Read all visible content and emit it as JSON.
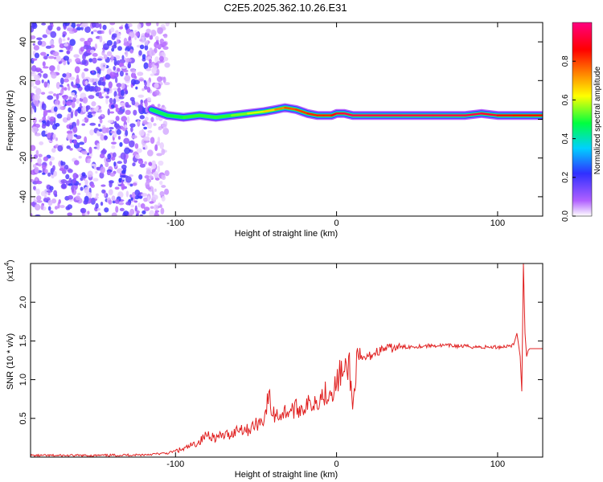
{
  "title": "C2E5.2025.362.10.26.E31",
  "chart_data": [
    {
      "type": "heatmap",
      "xlabel": "Height of straight line (km)",
      "ylabel": "Frequency (Hz)",
      "xlim": [
        -190,
        128
      ],
      "ylim": [
        -50,
        50
      ],
      "x_ticks": [
        -100,
        0,
        100
      ],
      "y_ticks": [
        -40,
        -20,
        0,
        20,
        40
      ],
      "colorbar": {
        "label": "Normalized spectral amplitude",
        "range": [
          0.0,
          1.0
        ],
        "ticks": [
          0.0,
          0.2,
          0.4,
          0.6,
          0.8
        ],
        "tick_labels": [
          "0.0",
          "0.2",
          "0.4",
          "0.6",
          "0.8"
        ],
        "colors": [
          "#ffffff",
          "#b060ff",
          "#3030ff",
          "#00d0ff",
          "#00ff40",
          "#ffff00",
          "#ff8000",
          "#ff0000",
          "#ff0080"
        ]
      },
      "noise_region_x": [
        -190,
        -105
      ],
      "ridge": {
        "x": [
          -115,
          -105,
          -95,
          -85,
          -75,
          -65,
          -55,
          -45,
          -38,
          -32,
          -25,
          -18,
          -12,
          -8,
          -3,
          0,
          5,
          10,
          20,
          40,
          60,
          80,
          90,
          100,
          110,
          120,
          128
        ],
        "freq": [
          5,
          2,
          1,
          2,
          1,
          2,
          3,
          4,
          5,
          6,
          5,
          3,
          2,
          2,
          2,
          3,
          3,
          2,
          2,
          2,
          2,
          2,
          3,
          2,
          2,
          2,
          2
        ],
        "amplitude": [
          0.45,
          0.5,
          0.5,
          0.55,
          0.5,
          0.55,
          0.6,
          0.65,
          0.75,
          0.8,
          0.85,
          0.85,
          0.9,
          0.85,
          0.9,
          0.95,
          1.0,
          1.0,
          1.0,
          1.0,
          1.0,
          1.0,
          1.0,
          0.95,
          0.9,
          0.9,
          0.9
        ]
      }
    },
    {
      "type": "line",
      "xlabel": "Height of straight line (km)",
      "ylabel": "SNR (10 * v/v)",
      "y_multiplier": "(x10",
      "y_multiplier_exp": "4",
      "xlim": [
        -190,
        128
      ],
      "ylim": [
        0,
        2.5
      ],
      "x_ticks": [
        -100,
        0,
        100
      ],
      "y_ticks": [
        0.5,
        1.0,
        1.5,
        2.0
      ],
      "y_tick_labels": [
        "0.5",
        "1.0",
        "1.5",
        "2.0"
      ],
      "series": [
        {
          "color": "#e02020",
          "x": [
            -190,
            -150,
            -120,
            -105,
            -100,
            -95,
            -90,
            -85,
            -80,
            -75,
            -70,
            -65,
            -60,
            -55,
            -50,
            -45,
            -42,
            -40,
            -35,
            -30,
            -25,
            -20,
            -15,
            -10,
            -5,
            0,
            2,
            5,
            8,
            10,
            12,
            15,
            18,
            20,
            25,
            30,
            35,
            40,
            50,
            60,
            70,
            80,
            90,
            100,
            105,
            110,
            112,
            114,
            115,
            116,
            117,
            118,
            119,
            120,
            122,
            125,
            128
          ],
          "y": [
            0.02,
            0.02,
            0.03,
            0.05,
            0.08,
            0.1,
            0.15,
            0.2,
            0.3,
            0.25,
            0.28,
            0.3,
            0.38,
            0.35,
            0.42,
            0.5,
            0.8,
            0.55,
            0.55,
            0.6,
            0.62,
            0.65,
            0.7,
            0.78,
            0.85,
            0.92,
            1.1,
            1.05,
            1.2,
            0.6,
            1.15,
            1.25,
            1.28,
            1.3,
            1.36,
            1.4,
            1.41,
            1.42,
            1.43,
            1.44,
            1.44,
            1.43,
            1.42,
            1.42,
            1.43,
            1.45,
            1.6,
            1.3,
            0.85,
            2.5,
            1.6,
            1.3,
            1.38,
            1.4,
            1.4,
            1.4,
            1.4
          ]
        }
      ]
    }
  ]
}
